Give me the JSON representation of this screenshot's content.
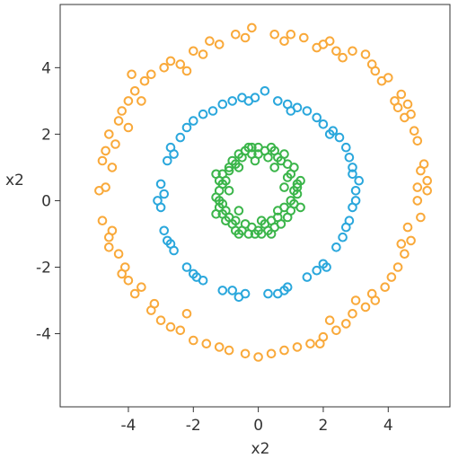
{
  "chart_data": {
    "type": "scatter",
    "title": "",
    "xlabel": "x2",
    "ylabel": "x2",
    "xlim": [
      -6.1,
      5.9
    ],
    "ylim": [
      -6.2,
      5.9
    ],
    "x_ticks": [
      -4,
      -2,
      0,
      2,
      4
    ],
    "y_ticks": [
      -4,
      -2,
      0,
      2,
      4
    ],
    "x_tick_labels": [
      "-4",
      "-2",
      "0",
      "2",
      "4"
    ],
    "y_tick_labels": [
      "-4",
      "-2",
      "0",
      "2",
      "4"
    ],
    "grid": false,
    "legend": "none",
    "marker": "open-circle",
    "series": [
      {
        "color": "#f9a93a",
        "points": [
          [
            5.2,
            0.3
          ],
          [
            5.1,
            1.1
          ],
          [
            4.9,
            1.8
          ],
          [
            4.7,
            2.6
          ],
          [
            4.4,
            3.2
          ],
          [
            4.0,
            3.7
          ],
          [
            3.5,
            4.1
          ],
          [
            2.9,
            4.5
          ],
          [
            2.2,
            4.8
          ],
          [
            1.4,
            4.9
          ],
          [
            0.5,
            5.0
          ],
          [
            -0.4,
            4.9
          ],
          [
            -1.2,
            4.7
          ],
          [
            -2.0,
            4.5
          ],
          [
            -2.7,
            4.2
          ],
          [
            -3.3,
            3.8
          ],
          [
            -3.8,
            3.3
          ],
          [
            -4.2,
            2.7
          ],
          [
            -4.6,
            2.0
          ],
          [
            -4.8,
            1.2
          ],
          [
            -4.9,
            0.3
          ],
          [
            -4.8,
            -0.6
          ],
          [
            -4.6,
            -1.4
          ],
          [
            -4.2,
            -2.2
          ],
          [
            -3.8,
            -2.8
          ],
          [
            -3.3,
            -3.3
          ],
          [
            -2.7,
            -3.8
          ],
          [
            -2.0,
            -4.2
          ],
          [
            -1.2,
            -4.4
          ],
          [
            -0.4,
            -4.6
          ],
          [
            0.4,
            -4.6
          ],
          [
            1.2,
            -4.4
          ],
          [
            2.0,
            -4.1
          ],
          [
            2.7,
            -3.7
          ],
          [
            3.3,
            -3.2
          ],
          [
            3.9,
            -2.6
          ],
          [
            4.3,
            -2.0
          ],
          [
            4.7,
            -1.2
          ],
          [
            5.0,
            -0.5
          ],
          [
            5.2,
            0.6
          ],
          [
            4.8,
            2.1
          ],
          [
            4.2,
            3.0
          ],
          [
            3.3,
            4.4
          ],
          [
            2.0,
            4.7
          ],
          [
            0.8,
            4.8
          ],
          [
            -0.7,
            5.0
          ],
          [
            -1.7,
            4.4
          ],
          [
            -2.9,
            4.0
          ],
          [
            -3.6,
            3.0
          ],
          [
            -4.3,
            2.4
          ],
          [
            -4.7,
            1.5
          ],
          [
            -4.5,
            -0.9
          ],
          [
            -4.0,
            -2.4
          ],
          [
            -3.0,
            -3.6
          ],
          [
            -1.6,
            -4.3
          ],
          [
            0.0,
            -4.7
          ],
          [
            1.6,
            -4.3
          ],
          [
            2.9,
            -3.4
          ],
          [
            3.6,
            -3.0
          ],
          [
            4.5,
            -1.6
          ],
          [
            4.9,
            0.0
          ],
          [
            4.6,
            2.9
          ],
          [
            3.8,
            3.6
          ],
          [
            2.6,
            4.3
          ],
          [
            1.0,
            5.0
          ],
          [
            -0.2,
            5.2
          ],
          [
            -1.5,
            4.8
          ],
          [
            -2.4,
            4.1
          ],
          [
            -3.5,
            3.6
          ],
          [
            -4.0,
            3.0
          ],
          [
            -4.4,
            1.7
          ],
          [
            -4.7,
            0.4
          ],
          [
            -4.3,
            -1.6
          ],
          [
            -3.6,
            -2.6
          ],
          [
            -2.4,
            -3.9
          ],
          [
            -0.9,
            -4.5
          ],
          [
            0.8,
            -4.5
          ],
          [
            2.4,
            -3.9
          ],
          [
            3.5,
            -2.8
          ],
          [
            4.1,
            -2.3
          ],
          [
            4.6,
            -0.8
          ],
          [
            5.0,
            0.9
          ],
          [
            4.5,
            2.5
          ],
          [
            3.6,
            3.9
          ],
          [
            2.4,
            4.5
          ],
          [
            -3.9,
            3.8
          ],
          [
            -4.5,
            1.0
          ],
          [
            -4.1,
            -2.0
          ],
          [
            -3.2,
            -3.1
          ],
          [
            1.9,
            -4.3
          ],
          [
            3.0,
            -3.0
          ],
          [
            4.4,
            -1.3
          ],
          [
            4.9,
            0.4
          ],
          [
            4.3,
            2.8
          ],
          [
            1.8,
            4.6
          ],
          [
            -2.2,
            3.9
          ],
          [
            -4.0,
            2.2
          ],
          [
            -4.6,
            -1.1
          ],
          [
            -2.2,
            -3.4
          ],
          [
            2.2,
            -3.6
          ]
        ]
      },
      {
        "color": "#2aa7dc",
        "points": [
          [
            3.0,
            0.3
          ],
          [
            2.9,
            1.0
          ],
          [
            2.7,
            1.6
          ],
          [
            2.3,
            2.1
          ],
          [
            1.8,
            2.5
          ],
          [
            1.2,
            2.8
          ],
          [
            0.6,
            3.0
          ],
          [
            -0.1,
            3.1
          ],
          [
            -0.8,
            3.0
          ],
          [
            -1.4,
            2.7
          ],
          [
            -2.0,
            2.4
          ],
          [
            -2.4,
            1.9
          ],
          [
            -2.8,
            1.2
          ],
          [
            -3.0,
            0.5
          ],
          [
            -3.0,
            -0.2
          ],
          [
            -2.9,
            -0.9
          ],
          [
            -2.6,
            -1.5
          ],
          [
            -2.2,
            -2.0
          ],
          [
            -1.7,
            -2.4
          ],
          [
            -1.1,
            -2.7
          ],
          [
            -0.4,
            -2.8
          ],
          [
            0.3,
            -2.8
          ],
          [
            0.9,
            -2.6
          ],
          [
            1.5,
            -2.3
          ],
          [
            2.0,
            -1.9
          ],
          [
            2.4,
            -1.4
          ],
          [
            2.7,
            -0.8
          ],
          [
            2.9,
            -0.2
          ],
          [
            3.1,
            0.6
          ],
          [
            2.5,
            1.9
          ],
          [
            1.5,
            2.7
          ],
          [
            0.2,
            3.3
          ],
          [
            -1.1,
            2.9
          ],
          [
            -2.2,
            2.2
          ],
          [
            -2.7,
            1.6
          ],
          [
            -2.9,
            0.2
          ],
          [
            -2.8,
            -1.2
          ],
          [
            -2.0,
            -2.2
          ],
          [
            -0.8,
            -2.7
          ],
          [
            0.6,
            -2.8
          ],
          [
            1.8,
            -2.1
          ],
          [
            2.6,
            -1.1
          ],
          [
            3.0,
            0.0
          ],
          [
            2.8,
            1.3
          ],
          [
            2.0,
            2.3
          ],
          [
            0.9,
            2.9
          ],
          [
            -0.5,
            3.1
          ],
          [
            -1.7,
            2.6
          ],
          [
            -2.6,
            1.4
          ],
          [
            -3.1,
            0.0
          ],
          [
            -2.7,
            -1.3
          ],
          [
            -1.9,
            -2.3
          ],
          [
            -0.6,
            -2.9
          ],
          [
            0.8,
            -2.7
          ],
          [
            2.1,
            -2.0
          ],
          [
            2.8,
            -0.6
          ],
          [
            2.9,
            0.8
          ],
          [
            2.2,
            2.0
          ],
          [
            1.0,
            2.7
          ],
          [
            -0.3,
            3.0
          ]
        ]
      },
      {
        "color": "#3bb54a",
        "points": [
          [
            1.2,
            0.5
          ],
          [
            1.1,
            1.0
          ],
          [
            0.8,
            1.4
          ],
          [
            0.4,
            1.6
          ],
          [
            0.0,
            1.6
          ],
          [
            -0.4,
            1.5
          ],
          [
            -0.8,
            1.2
          ],
          [
            -1.1,
            0.8
          ],
          [
            -1.2,
            0.3
          ],
          [
            -1.2,
            -0.2
          ],
          [
            -1.0,
            -0.6
          ],
          [
            -0.7,
            -0.9
          ],
          [
            -0.3,
            -1.0
          ],
          [
            0.1,
            -1.0
          ],
          [
            0.5,
            -0.8
          ],
          [
            0.9,
            -0.5
          ],
          [
            1.1,
            -0.1
          ],
          [
            1.2,
            0.2
          ],
          [
            1.0,
            0.8
          ],
          [
            0.6,
            1.3
          ],
          [
            0.2,
            1.5
          ],
          [
            -0.2,
            1.6
          ],
          [
            -0.6,
            1.4
          ],
          [
            -0.9,
            1.0
          ],
          [
            -1.1,
            0.5
          ],
          [
            -1.2,
            0.0
          ],
          [
            -1.1,
            -0.4
          ],
          [
            -0.8,
            -0.7
          ],
          [
            -0.5,
            -0.9
          ],
          [
            -0.1,
            -1.0
          ],
          [
            0.3,
            -0.9
          ],
          [
            0.7,
            -0.7
          ],
          [
            1.0,
            -0.3
          ],
          [
            1.2,
            0.4
          ],
          [
            0.9,
            1.1
          ],
          [
            0.5,
            1.5
          ],
          [
            0.0,
            1.4
          ],
          [
            -0.5,
            1.3
          ],
          [
            -0.9,
            0.9
          ],
          [
            -1.2,
            0.6
          ],
          [
            -1.3,
            0.1
          ],
          [
            -1.0,
            -0.3
          ],
          [
            -0.7,
            -0.6
          ],
          [
            -0.2,
            -0.8
          ],
          [
            0.2,
            -0.7
          ],
          [
            0.6,
            -0.5
          ],
          [
            1.0,
            0.0
          ],
          [
            1.3,
            0.6
          ],
          [
            0.7,
            1.2
          ],
          [
            0.3,
            1.3
          ],
          [
            -0.1,
            1.2
          ],
          [
            -0.3,
            1.6
          ],
          [
            -0.7,
            1.1
          ],
          [
            -1.0,
            0.6
          ],
          [
            -1.1,
            -0.1
          ],
          [
            -0.9,
            -0.5
          ],
          [
            -0.4,
            -0.7
          ],
          [
            0.0,
            -0.9
          ],
          [
            0.4,
            -0.6
          ],
          [
            0.8,
            -0.2
          ],
          [
            1.1,
            0.3
          ],
          [
            0.9,
            0.7
          ],
          [
            0.5,
            1.0
          ],
          [
            -0.2,
            1.4
          ],
          [
            -0.6,
            1.0
          ],
          [
            -0.9,
            0.3
          ],
          [
            -0.6,
            -0.3
          ],
          [
            0.1,
            -0.6
          ],
          [
            0.6,
            -0.3
          ],
          [
            0.8,
            0.4
          ],
          [
            1.3,
            -0.2
          ],
          [
            0.4,
            -1.0
          ],
          [
            -0.6,
            -1.0
          ],
          [
            -1.3,
            -0.4
          ],
          [
            -1.3,
            0.8
          ]
        ]
      }
    ]
  }
}
